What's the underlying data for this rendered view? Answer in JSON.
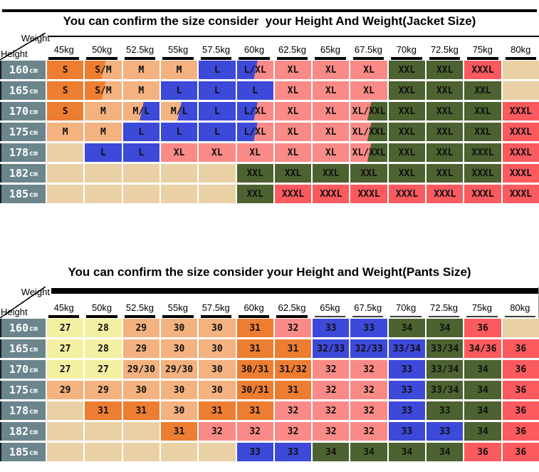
{
  "corner": {
    "weight_label": "Weight",
    "height_label": "Height"
  },
  "colors": {
    "o": "#ED7D31",
    "t": "#F3B27F",
    "e": "#EAD1A5",
    "b": "#3D49D8",
    "p": "#FA8A87",
    "g": "#4C6231",
    "r": "#FB5A5F",
    "y": "#F3F0A2",
    "slate": "#6B858D",
    "line": "#000000"
  },
  "chart_data": [
    {
      "type": "table",
      "title": "You can confirm the size consider  your Height And Weight(Jacket Size)",
      "x_axis_label": "Weight",
      "y_axis_label": "Height",
      "columns": [
        "45kg",
        "50kg",
        "52.5kg",
        "55kg",
        "57.5kg",
        "60kg",
        "62.5kg",
        "65kg",
        "67.5kg",
        "70kg",
        "72.5kg",
        "75kg",
        "80kg"
      ],
      "row_unit": "cm",
      "row_headers": [
        "160",
        "165",
        "170",
        "175",
        "178",
        "182",
        "185"
      ],
      "cells": [
        [
          [
            "S",
            "o"
          ],
          [
            "S/M",
            "o",
            "t"
          ],
          [
            "M",
            "t"
          ],
          [
            "M",
            "t"
          ],
          [
            "L",
            "b"
          ],
          [
            "L/XL",
            "b",
            "p"
          ],
          [
            "XL",
            "p"
          ],
          [
            "XL",
            "p"
          ],
          [
            "XL",
            "p"
          ],
          [
            "XXL",
            "g"
          ],
          [
            "XXL",
            "g"
          ],
          [
            "XXXL",
            "r"
          ],
          [
            "",
            "e"
          ]
        ],
        [
          [
            "S",
            "o"
          ],
          [
            "S/M",
            "o",
            "t"
          ],
          [
            "M",
            "t"
          ],
          [
            "L",
            "b"
          ],
          [
            "L",
            "b"
          ],
          [
            "L",
            "b"
          ],
          [
            "XL",
            "p"
          ],
          [
            "XL",
            "p"
          ],
          [
            "XL",
            "p"
          ],
          [
            "XXL",
            "g"
          ],
          [
            "XXL",
            "g"
          ],
          [
            "XXL",
            "g"
          ],
          [
            "",
            "e"
          ]
        ],
        [
          [
            "S",
            "o"
          ],
          [
            "M",
            "t"
          ],
          [
            "M/L",
            "t",
            "b"
          ],
          [
            "M/L",
            "t",
            "b"
          ],
          [
            "L",
            "b"
          ],
          [
            "L/XL",
            "b",
            "p"
          ],
          [
            "XL",
            "p"
          ],
          [
            "XL",
            "p"
          ],
          [
            "XL/XXL",
            "p",
            "g"
          ],
          [
            "XXL",
            "g"
          ],
          [
            "XXL",
            "g"
          ],
          [
            "XXL",
            "g"
          ],
          [
            "XXXL",
            "r"
          ]
        ],
        [
          [
            "M",
            "t"
          ],
          [
            "M",
            "t"
          ],
          [
            "L",
            "b"
          ],
          [
            "L",
            "b"
          ],
          [
            "L",
            "b"
          ],
          [
            "L/XL",
            "b",
            "p"
          ],
          [
            "XL",
            "p"
          ],
          [
            "XL",
            "p"
          ],
          [
            "XL/XXL",
            "p",
            "g"
          ],
          [
            "XXL",
            "g"
          ],
          [
            "XXL",
            "g"
          ],
          [
            "XXL",
            "g"
          ],
          [
            "XXXL",
            "r"
          ]
        ],
        [
          [
            "",
            "e"
          ],
          [
            "L",
            "b"
          ],
          [
            "L",
            "b"
          ],
          [
            "XL",
            "p"
          ],
          [
            "XL",
            "p"
          ],
          [
            "XL",
            "p"
          ],
          [
            "XL",
            "p"
          ],
          [
            "XL",
            "p"
          ],
          [
            "XL/XXL",
            "p",
            "g"
          ],
          [
            "XXL",
            "g"
          ],
          [
            "XXL",
            "g"
          ],
          [
            "XXXL",
            "g"
          ],
          [
            "XXXL",
            "r"
          ]
        ],
        [
          [
            "",
            "e"
          ],
          [
            "",
            "e"
          ],
          [
            "",
            "e"
          ],
          [
            "",
            "e"
          ],
          [
            "",
            "e"
          ],
          [
            "XXL",
            "g"
          ],
          [
            "XXL",
            "g"
          ],
          [
            "XXL",
            "g"
          ],
          [
            "XXL",
            "g"
          ],
          [
            "XXL",
            "g"
          ],
          [
            "XXL",
            "g"
          ],
          [
            "XXXL",
            "g"
          ],
          [
            "XXXL",
            "r"
          ]
        ],
        [
          [
            "",
            "e"
          ],
          [
            "",
            "e"
          ],
          [
            "",
            "e"
          ],
          [
            "",
            "e"
          ],
          [
            "",
            "e"
          ],
          [
            "XXL",
            "g"
          ],
          [
            "XXXL",
            "r"
          ],
          [
            "XXXL",
            "r"
          ],
          [
            "XXXL",
            "r"
          ],
          [
            "XXXL",
            "r"
          ],
          [
            "XXXL",
            "r"
          ],
          [
            "XXXL",
            "r"
          ],
          [
            "XXXL",
            "r"
          ]
        ]
      ]
    },
    {
      "type": "table",
      "title": "You can confirm the size consider your Height and Weight(Pants Size)",
      "x_axis_label": "Weight",
      "y_axis_label": "Height",
      "columns": [
        "45kg",
        "50kg",
        "52.5kg",
        "55kg",
        "57.5kg",
        "60kg",
        "62.5kg",
        "65kg",
        "67.5kg",
        "70kg",
        "72.5kg",
        "75kg",
        "80kg"
      ],
      "row_unit": "cm",
      "row_headers": [
        "160",
        "165",
        "170",
        "175",
        "178",
        "182",
        "185"
      ],
      "cells": [
        [
          [
            "27",
            "y"
          ],
          [
            "28",
            "y"
          ],
          [
            "29",
            "t"
          ],
          [
            "30",
            "t"
          ],
          [
            "30",
            "t"
          ],
          [
            "31",
            "o"
          ],
          [
            "32",
            "p"
          ],
          [
            "33",
            "b"
          ],
          [
            "33",
            "b"
          ],
          [
            "34",
            "g"
          ],
          [
            "34",
            "g"
          ],
          [
            "36",
            "r"
          ],
          [
            "",
            "e"
          ]
        ],
        [
          [
            "27",
            "y"
          ],
          [
            "28",
            "y"
          ],
          [
            "29",
            "t"
          ],
          [
            "30",
            "t"
          ],
          [
            "30",
            "t"
          ],
          [
            "31",
            "o"
          ],
          [
            "31",
            "o"
          ],
          [
            "32/33",
            "b"
          ],
          [
            "32/33",
            "b"
          ],
          [
            "33/34",
            "b"
          ],
          [
            "33/34",
            "g"
          ],
          [
            "34/36",
            "r"
          ],
          [
            "36",
            "r"
          ]
        ],
        [
          [
            "27",
            "y"
          ],
          [
            "27",
            "y"
          ],
          [
            "29/30",
            "t"
          ],
          [
            "29/30",
            "t"
          ],
          [
            "30",
            "t"
          ],
          [
            "30/31",
            "o"
          ],
          [
            "31/32",
            "o"
          ],
          [
            "32",
            "p"
          ],
          [
            "32",
            "p"
          ],
          [
            "33",
            "b"
          ],
          [
            "33/34",
            "g"
          ],
          [
            "34",
            "g"
          ],
          [
            "36",
            "r"
          ]
        ],
        [
          [
            "29",
            "t"
          ],
          [
            "29",
            "t"
          ],
          [
            "30",
            "t"
          ],
          [
            "30",
            "t"
          ],
          [
            "30",
            "t"
          ],
          [
            "30/31",
            "o"
          ],
          [
            "31",
            "o"
          ],
          [
            "32",
            "p"
          ],
          [
            "32",
            "p"
          ],
          [
            "33",
            "b"
          ],
          [
            "33/34",
            "g"
          ],
          [
            "34",
            "g"
          ],
          [
            "36",
            "r"
          ]
        ],
        [
          [
            "",
            "e"
          ],
          [
            "31",
            "o"
          ],
          [
            "31",
            "o"
          ],
          [
            "30",
            "t"
          ],
          [
            "31",
            "o"
          ],
          [
            "31",
            "o"
          ],
          [
            "32",
            "p"
          ],
          [
            "32",
            "p"
          ],
          [
            "32",
            "p"
          ],
          [
            "33",
            "b"
          ],
          [
            "33",
            "g"
          ],
          [
            "34",
            "g"
          ],
          [
            "36",
            "r"
          ]
        ],
        [
          [
            "",
            "e"
          ],
          [
            "",
            "e"
          ],
          [
            "",
            "e"
          ],
          [
            "31",
            "o"
          ],
          [
            "32",
            "p"
          ],
          [
            "32",
            "p"
          ],
          [
            "32",
            "p"
          ],
          [
            "32",
            "p"
          ],
          [
            "32",
            "p"
          ],
          [
            "33",
            "b"
          ],
          [
            "33",
            "b"
          ],
          [
            "34",
            "g"
          ],
          [
            "36",
            "r"
          ]
        ],
        [
          [
            "",
            "e"
          ],
          [
            "",
            "e"
          ],
          [
            "",
            "e"
          ],
          [
            "",
            "e"
          ],
          [
            "",
            "e"
          ],
          [
            "33",
            "b"
          ],
          [
            "33",
            "b"
          ],
          [
            "34",
            "g"
          ],
          [
            "34",
            "g"
          ],
          [
            "34",
            "g"
          ],
          [
            "34",
            "g"
          ],
          [
            "36",
            "r"
          ],
          [
            "36",
            "r"
          ]
        ]
      ]
    }
  ]
}
